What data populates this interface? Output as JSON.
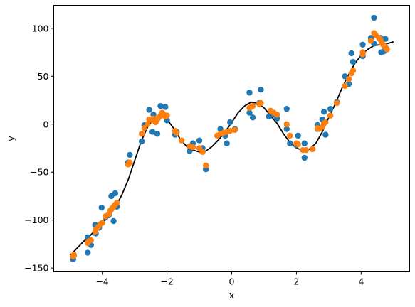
{
  "chart_data": {
    "type": "scatter",
    "title": "",
    "xlabel": "x",
    "ylabel": "y",
    "xlim": [
      -5.5,
      5.5
    ],
    "ylim": [
      -154,
      124
    ],
    "x_ticks": [
      -4,
      -2,
      0,
      2,
      4
    ],
    "x_tick_labels": [
      "−4",
      "−2",
      "0",
      "2",
      "4"
    ],
    "y_ticks": [
      -150,
      -100,
      -50,
      0,
      50,
      100
    ],
    "y_tick_labels": [
      "−150",
      "−100",
      "−50",
      "0",
      "50",
      "100"
    ],
    "grid": false,
    "legend": "none",
    "colors": {
      "observed": "#1f77b4",
      "predicted": "#ff7f0e",
      "curve": "#000000"
    },
    "curve": {
      "x": [
        -5.0,
        -4.8,
        -4.6,
        -4.4,
        -4.2,
        -4.0,
        -3.8,
        -3.6,
        -3.4,
        -3.2,
        -3.0,
        -2.8,
        -2.6,
        -2.4,
        -2.2,
        -2.0,
        -1.8,
        -1.6,
        -1.4,
        -1.2,
        -1.0,
        -0.8,
        -0.6,
        -0.4,
        -0.2,
        0.0,
        0.2,
        0.4,
        0.6,
        0.8,
        1.0,
        1.2,
        1.4,
        1.6,
        1.8,
        2.0,
        2.2,
        2.4,
        2.6,
        2.8,
        3.0,
        3.2,
        3.4,
        3.6,
        3.8,
        4.0,
        4.2,
        4.4,
        4.6,
        4.8,
        5.0
      ],
      "y": [
        -137,
        -130,
        -123,
        -117,
        -110,
        -103,
        -96,
        -87,
        -74,
        -58,
        -38,
        -18,
        -3,
        6,
        9,
        5,
        -4,
        -15,
        -23,
        -27,
        -29,
        -28,
        -23,
        -16,
        -8,
        2,
        12,
        19,
        23,
        22,
        17,
        9,
        1,
        -10,
        -19,
        -25,
        -27,
        -26,
        -20,
        -8,
        7,
        21,
        37,
        51,
        63,
        72,
        78,
        82,
        83,
        84,
        86
      ]
    },
    "series": [
      {
        "role": "observed",
        "points": [
          [
            -4.9,
            -141
          ],
          [
            -4.88,
            -137
          ],
          [
            -4.45,
            -134
          ],
          [
            -4.45,
            -118
          ],
          [
            -4.35,
            -126
          ],
          [
            -4.22,
            -105
          ],
          [
            -4.2,
            -114
          ],
          [
            -4.1,
            -108
          ],
          [
            -4.02,
            -87
          ],
          [
            -3.9,
            -97
          ],
          [
            -3.8,
            -95
          ],
          [
            -3.72,
            -75
          ],
          [
            -3.7,
            -88
          ],
          [
            -3.65,
            -101
          ],
          [
            -3.6,
            -72
          ],
          [
            -3.55,
            -86
          ],
          [
            -3.2,
            -40
          ],
          [
            -3.15,
            -32
          ],
          [
            -2.78,
            -18
          ],
          [
            -2.7,
            -1
          ],
          [
            -2.55,
            15
          ],
          [
            -2.45,
            -8
          ],
          [
            -2.42,
            10
          ],
          [
            -2.3,
            -10
          ],
          [
            -2.2,
            19
          ],
          [
            -2.05,
            18
          ],
          [
            -2.0,
            4
          ],
          [
            -1.75,
            -11
          ],
          [
            -1.7,
            -8
          ],
          [
            -1.3,
            -28
          ],
          [
            -1.2,
            -20
          ],
          [
            -1.0,
            -17
          ],
          [
            -0.9,
            -25
          ],
          [
            -0.8,
            -47
          ],
          [
            -0.35,
            -5
          ],
          [
            -0.2,
            -12
          ],
          [
            -0.15,
            -20
          ],
          [
            -0.05,
            2
          ],
          [
            0.1,
            -5
          ],
          [
            0.55,
            12
          ],
          [
            0.55,
            33
          ],
          [
            0.65,
            7
          ],
          [
            0.85,
            22
          ],
          [
            0.9,
            36
          ],
          [
            1.15,
            8
          ],
          [
            1.3,
            10
          ],
          [
            1.4,
            6
          ],
          [
            1.7,
            16
          ],
          [
            1.7,
            -5
          ],
          [
            1.8,
            -20
          ],
          [
            2.0,
            -22
          ],
          [
            2.05,
            -12
          ],
          [
            2.25,
            -20
          ],
          [
            2.25,
            -35
          ],
          [
            2.5,
            -26
          ],
          [
            2.65,
            -5
          ],
          [
            2.65,
            -1
          ],
          [
            2.8,
            5
          ],
          [
            2.85,
            13
          ],
          [
            2.9,
            -11
          ],
          [
            3.05,
            16
          ],
          [
            3.25,
            23
          ],
          [
            3.5,
            50
          ],
          [
            3.62,
            42
          ],
          [
            3.7,
            74
          ],
          [
            3.75,
            65
          ],
          [
            4.05,
            71
          ],
          [
            4.05,
            83
          ],
          [
            4.3,
            90
          ],
          [
            4.4,
            111
          ],
          [
            4.4,
            84
          ],
          [
            4.6,
            90
          ],
          [
            4.62,
            75
          ],
          [
            4.7,
            76
          ],
          [
            4.75,
            89
          ],
          [
            4.78,
            79
          ]
        ]
      },
      {
        "role": "predicted",
        "points": [
          [
            -4.9,
            -138
          ],
          [
            -4.88,
            -136
          ],
          [
            -4.45,
            -124
          ],
          [
            -4.42,
            -122
          ],
          [
            -4.35,
            -121
          ],
          [
            -4.22,
            -112
          ],
          [
            -4.2,
            -110
          ],
          [
            -4.12,
            -107
          ],
          [
            -4.05,
            -104
          ],
          [
            -4.0,
            -103
          ],
          [
            -3.9,
            -96
          ],
          [
            -3.8,
            -94
          ],
          [
            -3.75,
            -90
          ],
          [
            -3.7,
            -88
          ],
          [
            -3.65,
            -86
          ],
          [
            -3.6,
            -84
          ],
          [
            -3.55,
            -82
          ],
          [
            -3.2,
            -42
          ],
          [
            -3.15,
            -40
          ],
          [
            -2.78,
            -10
          ],
          [
            -2.7,
            -4
          ],
          [
            -2.6,
            0
          ],
          [
            -2.55,
            5
          ],
          [
            -2.45,
            4
          ],
          [
            -2.42,
            6
          ],
          [
            -2.35,
            2
          ],
          [
            -2.3,
            5
          ],
          [
            -2.25,
            7
          ],
          [
            -2.2,
            9
          ],
          [
            -2.15,
            12
          ],
          [
            -2.1,
            10
          ],
          [
            -2.05,
            8
          ],
          [
            -2.0,
            9
          ],
          [
            -1.75,
            -7
          ],
          [
            -1.7,
            -9
          ],
          [
            -1.55,
            -17
          ],
          [
            -1.3,
            -23
          ],
          [
            -1.2,
            -24
          ],
          [
            -1.0,
            -25
          ],
          [
            -0.9,
            -29
          ],
          [
            -0.8,
            -43
          ],
          [
            -0.45,
            -12
          ],
          [
            -0.35,
            -10
          ],
          [
            -0.25,
            -9
          ],
          [
            -0.15,
            -8
          ],
          [
            -0.05,
            -7
          ],
          [
            0.1,
            -6
          ],
          [
            0.55,
            17
          ],
          [
            0.6,
            18
          ],
          [
            0.65,
            19
          ],
          [
            0.85,
            21
          ],
          [
            0.9,
            22
          ],
          [
            1.2,
            14
          ],
          [
            1.3,
            12
          ],
          [
            1.4,
            10
          ],
          [
            1.7,
            0
          ],
          [
            1.8,
            -12
          ],
          [
            2.0,
            -20
          ],
          [
            2.05,
            -21
          ],
          [
            2.2,
            -27
          ],
          [
            2.3,
            -27
          ],
          [
            2.5,
            -26
          ],
          [
            2.65,
            -4
          ],
          [
            2.7,
            -5
          ],
          [
            2.8,
            -3
          ],
          [
            2.85,
            1
          ],
          [
            2.9,
            2
          ],
          [
            3.05,
            9
          ],
          [
            3.25,
            22
          ],
          [
            3.5,
            40
          ],
          [
            3.62,
            47
          ],
          [
            3.7,
            53
          ],
          [
            3.75,
            56
          ],
          [
            4.05,
            73
          ],
          [
            4.05,
            75
          ],
          [
            4.3,
            87
          ],
          [
            4.4,
            95
          ],
          [
            4.45,
            93
          ],
          [
            4.55,
            90
          ],
          [
            4.6,
            88
          ],
          [
            4.65,
            84
          ],
          [
            4.7,
            82
          ],
          [
            4.75,
            80
          ],
          [
            4.8,
            78
          ]
        ]
      }
    ]
  }
}
